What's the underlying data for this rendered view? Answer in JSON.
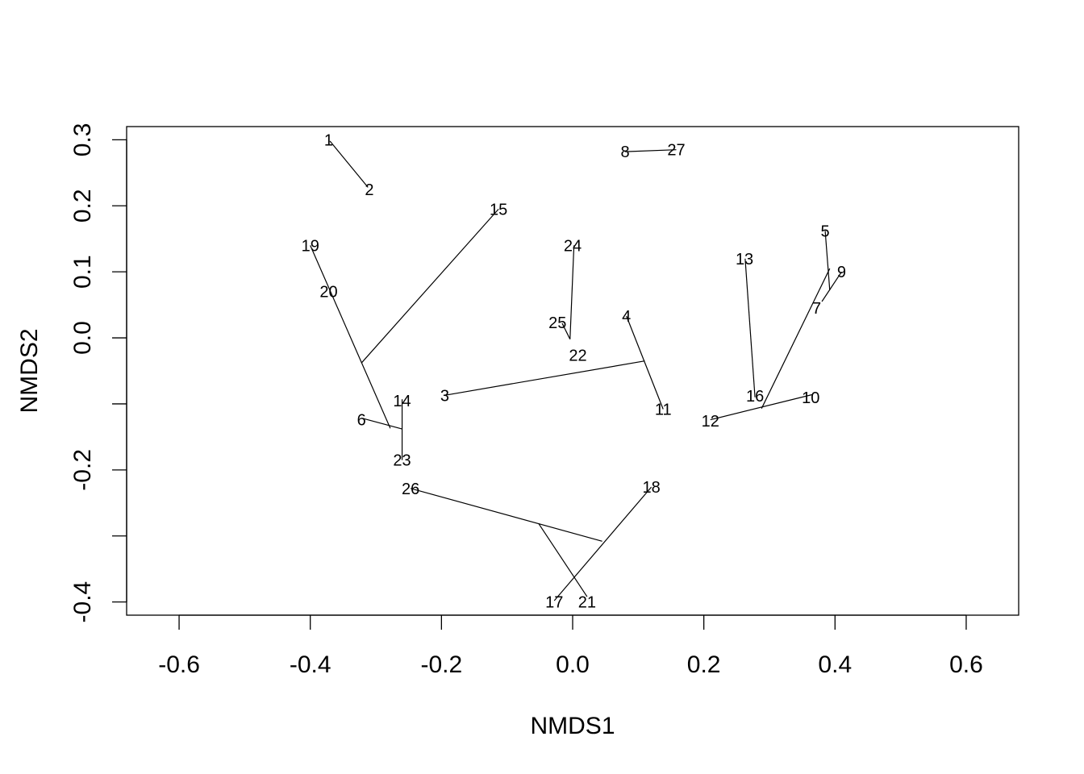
{
  "chart_data": {
    "type": "scatter",
    "title": "",
    "xlabel": "NMDS1",
    "ylabel": "NMDS2",
    "xlim": [
      -0.68,
      0.68
    ],
    "ylim": [
      -0.42,
      0.32
    ],
    "xticks": [
      -0.6,
      -0.4,
      -0.2,
      0.0,
      0.2,
      0.4,
      0.6
    ],
    "xtick_labels": [
      "-0.6",
      "-0.4",
      "-0.2",
      "0.0",
      "0.2",
      "0.4",
      "0.6"
    ],
    "yticks": [
      -0.4,
      -0.3,
      -0.2,
      -0.1,
      0.0,
      0.1,
      0.2,
      0.3
    ],
    "ytick_labels": [
      "-0.4",
      "",
      "-0.2",
      "",
      "0.0",
      "0.1",
      "0.2",
      "0.3"
    ],
    "grid": false,
    "legend": "none",
    "points": [
      {
        "label": "1",
        "x": -0.372,
        "y": 0.3
      },
      {
        "label": "2",
        "x": -0.31,
        "y": 0.225
      },
      {
        "label": "3",
        "x": -0.195,
        "y": -0.087
      },
      {
        "label": "4",
        "x": 0.082,
        "y": 0.033
      },
      {
        "label": "5",
        "x": 0.385,
        "y": 0.162
      },
      {
        "label": "6",
        "x": -0.322,
        "y": -0.124
      },
      {
        "label": "7",
        "x": 0.372,
        "y": 0.045
      },
      {
        "label": "8",
        "x": 0.08,
        "y": 0.282
      },
      {
        "label": "9",
        "x": 0.41,
        "y": 0.1
      },
      {
        "label": "10",
        "x": 0.363,
        "y": -0.09
      },
      {
        "label": "11",
        "x": 0.138,
        "y": -0.108
      },
      {
        "label": "12",
        "x": 0.21,
        "y": -0.126
      },
      {
        "label": "13",
        "x": 0.262,
        "y": 0.12
      },
      {
        "label": "14",
        "x": -0.26,
        "y": -0.095
      },
      {
        "label": "15",
        "x": -0.113,
        "y": 0.195
      },
      {
        "label": "16",
        "x": 0.278,
        "y": -0.088
      },
      {
        "label": "17",
        "x": -0.028,
        "y": -0.4
      },
      {
        "label": "18",
        "x": 0.12,
        "y": -0.226
      },
      {
        "label": "19",
        "x": -0.4,
        "y": 0.14
      },
      {
        "label": "20",
        "x": -0.372,
        "y": 0.07
      },
      {
        "label": "21",
        "x": 0.022,
        "y": -0.4
      },
      {
        "label": "22",
        "x": 0.008,
        "y": -0.026
      },
      {
        "label": "23",
        "x": -0.26,
        "y": -0.185
      },
      {
        "label": "24",
        "x": 0.0,
        "y": 0.14
      },
      {
        "label": "25",
        "x": -0.023,
        "y": 0.023
      },
      {
        "label": "26",
        "x": -0.247,
        "y": -0.228
      },
      {
        "label": "27",
        "x": 0.158,
        "y": 0.285
      }
    ],
    "segments": [
      {
        "x1": -0.37,
        "y1": 0.298,
        "x2": -0.312,
        "y2": 0.228
      },
      {
        "x1": 0.08,
        "y1": 0.282,
        "x2": 0.158,
        "y2": 0.285
      },
      {
        "x1": -0.4,
        "y1": 0.14,
        "x2": -0.278,
        "y2": -0.137
      },
      {
        "x1": -0.32,
        "y1": -0.122,
        "x2": -0.26,
        "y2": -0.138
      },
      {
        "x1": -0.26,
        "y1": -0.093,
        "x2": -0.26,
        "y2": -0.185
      },
      {
        "x1": -0.113,
        "y1": 0.195,
        "x2": -0.322,
        "y2": -0.038
      },
      {
        "x1": 0.002,
        "y1": 0.14,
        "x2": -0.004,
        "y2": -0.002
      },
      {
        "x1": -0.016,
        "y1": 0.022,
        "x2": -0.004,
        "y2": -0.002
      },
      {
        "x1": 0.082,
        "y1": 0.033,
        "x2": 0.138,
        "y2": -0.108
      },
      {
        "x1": -0.195,
        "y1": -0.087,
        "x2": 0.11,
        "y2": -0.035
      },
      {
        "x1": 0.263,
        "y1": 0.12,
        "x2": 0.278,
        "y2": -0.09
      },
      {
        "x1": 0.385,
        "y1": 0.162,
        "x2": 0.392,
        "y2": 0.072
      },
      {
        "x1": 0.41,
        "y1": 0.1,
        "x2": 0.38,
        "y2": 0.055
      },
      {
        "x1": 0.392,
        "y1": 0.105,
        "x2": 0.288,
        "y2": -0.107
      },
      {
        "x1": 0.21,
        "y1": -0.124,
        "x2": 0.365,
        "y2": -0.086
      },
      {
        "x1": -0.247,
        "y1": -0.228,
        "x2": 0.045,
        "y2": -0.308
      },
      {
        "x1": -0.052,
        "y1": -0.281,
        "x2": 0.022,
        "y2": -0.392
      },
      {
        "x1": 0.12,
        "y1": -0.226,
        "x2": -0.028,
        "y2": -0.398
      }
    ]
  }
}
